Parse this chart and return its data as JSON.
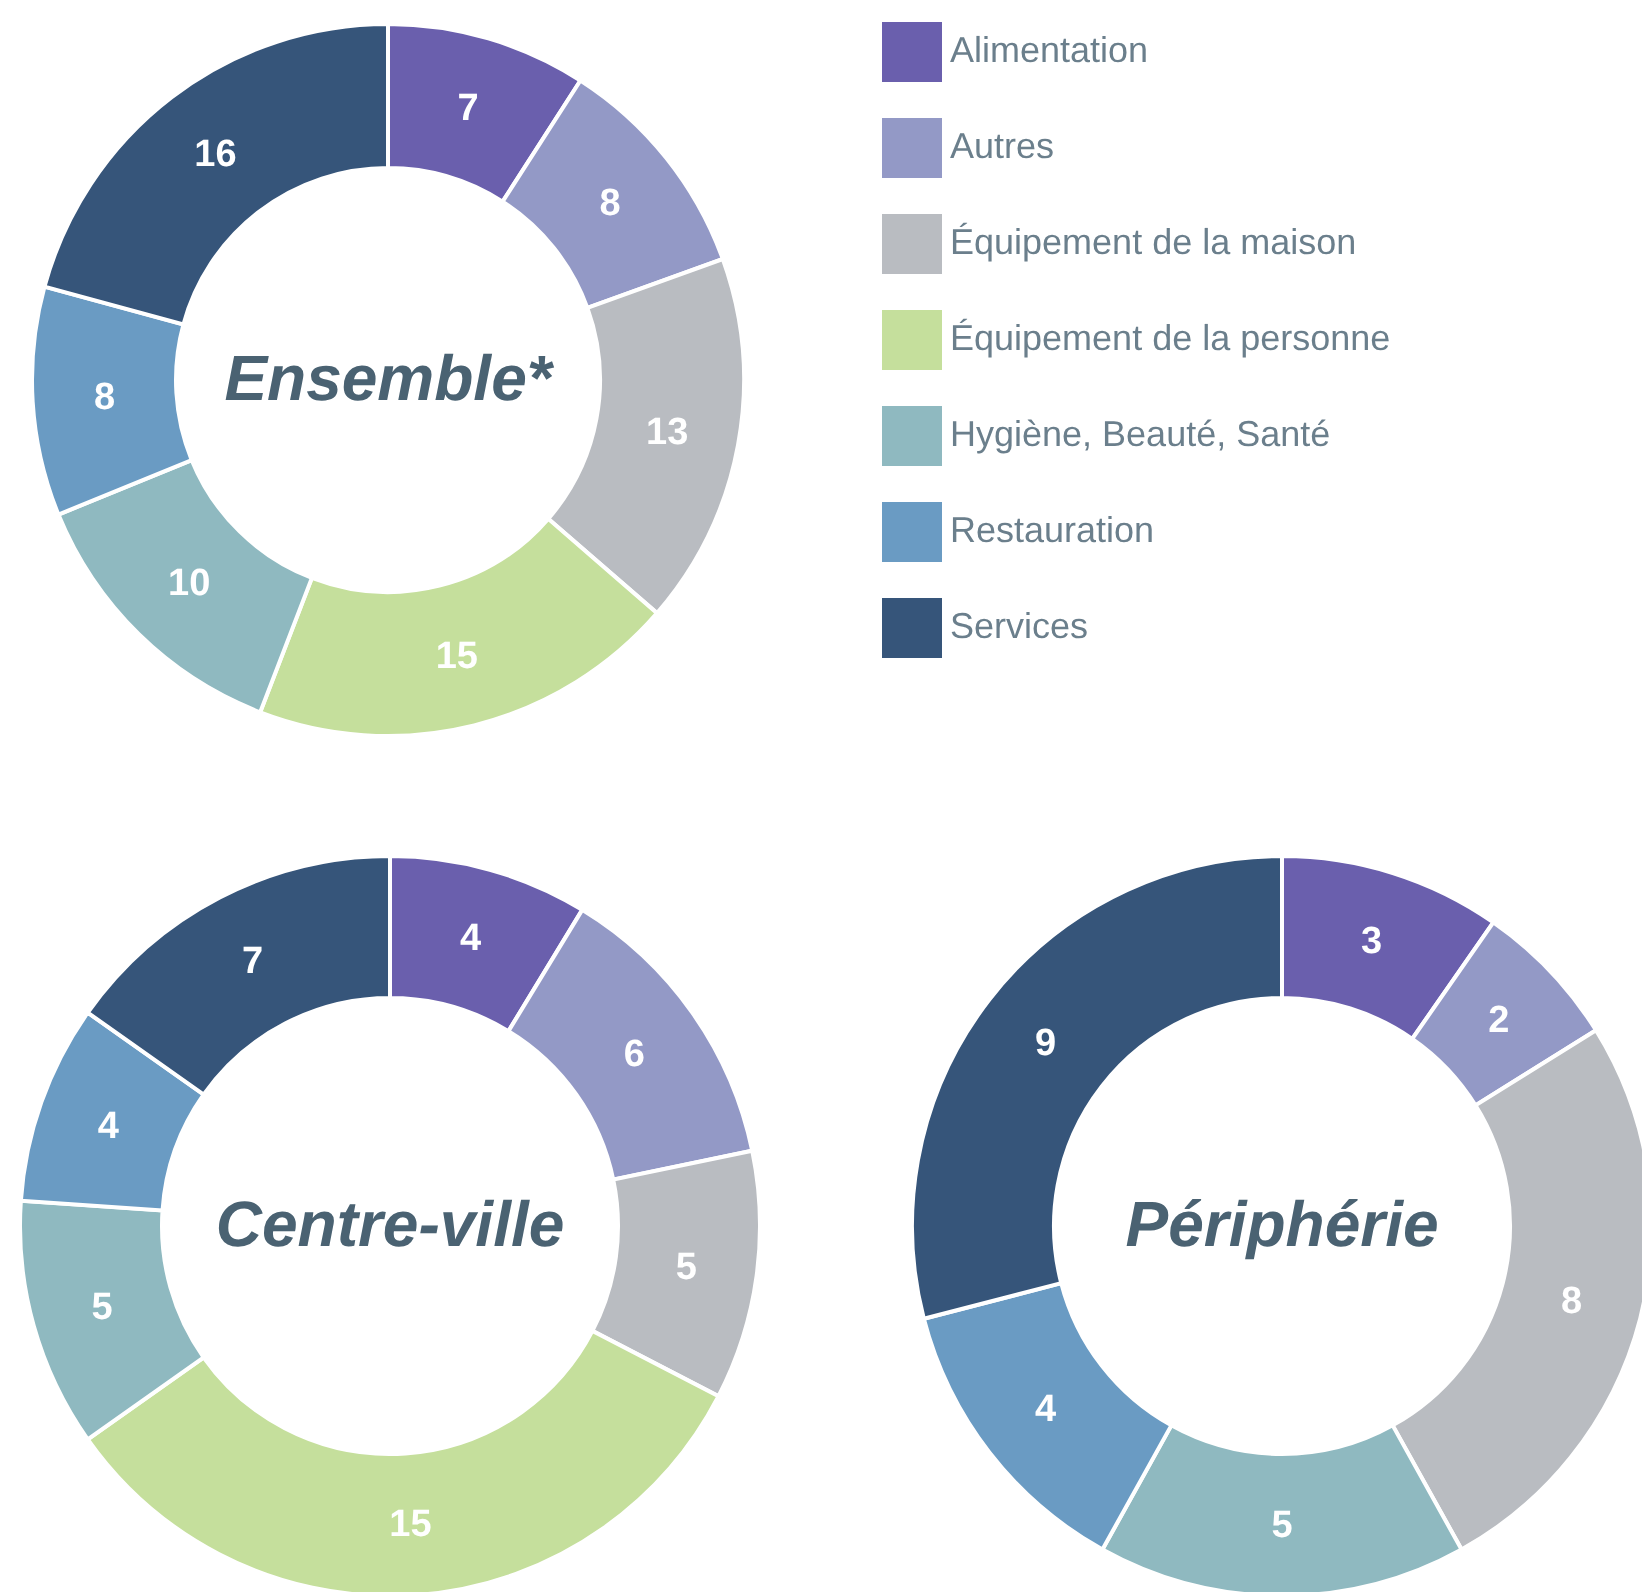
{
  "chart_data": [
    {
      "type": "donut",
      "title": "Ensemble*",
      "categories": [
        "Alimentation",
        "Autres",
        "Équipement de la maison",
        "Équipement de la personne",
        "Hygiène, Beauté, Santé",
        "Restauration",
        "Services"
      ],
      "values": [
        7,
        8,
        13,
        15,
        10,
        8,
        16
      ],
      "colors": [
        "#6a5fad",
        "#9399c6",
        "#b9bcc1",
        "#c5df9c",
        "#8fb9c0",
        "#6a9bc3",
        "#36557a"
      ],
      "data_labels": true,
      "legend": "right"
    },
    {
      "type": "donut",
      "title": "Centre-ville",
      "categories": [
        null,
        null,
        null,
        null,
        null,
        null,
        null
      ],
      "values": [
        4,
        6,
        5,
        15,
        5,
        4,
        7
      ],
      "colors": [
        "#6a5fad",
        "#9399c6",
        "#b9bcc1",
        "#c5df9c",
        "#8fb9c0",
        "#6a9bc3",
        "#36557a"
      ],
      "data_labels": true
    },
    {
      "type": "donut",
      "title": "Périphérie",
      "categories": [
        null,
        null,
        null,
        null,
        null,
        null,
        null
      ],
      "values": [
        3,
        2,
        8,
        null,
        5,
        4,
        9
      ],
      "colors": [
        "#6a5fad",
        "#9399c6",
        "#b9bcc1",
        "#c5df9c",
        "#8fb9c0",
        "#6a9bc3",
        "#36557a"
      ],
      "data_labels": true
    }
  ]
}
